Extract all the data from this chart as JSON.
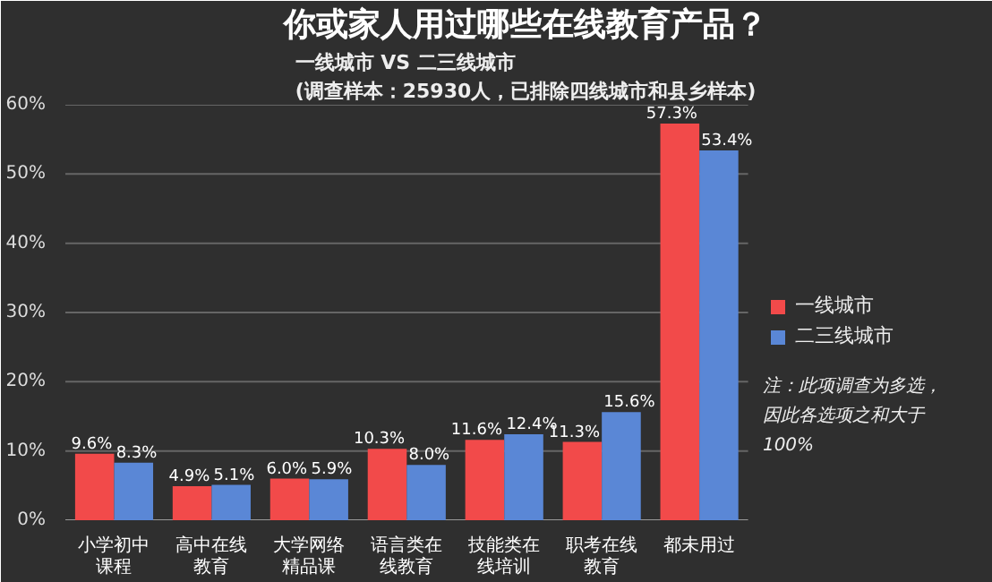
{
  "chart_data": {
    "type": "bar",
    "title": "你或家人用过哪些在线教育产品？",
    "subtitle": "一线城市 VS 二三线城市\n(调查样本：25930人，已排除四线城市和县乡样本)",
    "categories": [
      "小学初中课程",
      "高中在线教育",
      "大学网络精品课",
      "语言类在线教育",
      "技能类在线培训",
      "职考在线教育",
      "都未用过"
    ],
    "series": [
      {
        "name": "一线城市",
        "color": "#f24a4a",
        "values": [
          9.6,
          4.9,
          6.0,
          10.3,
          11.6,
          11.3,
          57.3
        ],
        "value_labels": [
          "9.6%",
          "4.9%",
          "6.0%",
          "10.3%",
          "11.6%",
          "11.3%",
          "57.3%"
        ]
      },
      {
        "name": "二三线城市",
        "color": "#5a87d6",
        "values": [
          8.3,
          5.1,
          5.9,
          8.0,
          12.4,
          15.6,
          53.4
        ],
        "value_labels": [
          "8.3%",
          "5.1%",
          "5.9%",
          "8.0%",
          "12.4%",
          "15.6%",
          "53.4%"
        ]
      }
    ],
    "ylim": [
      0,
      60
    ],
    "yticks": [
      {
        "value": 0,
        "label": "0%"
      },
      {
        "value": 10,
        "label": "10%"
      },
      {
        "value": 20,
        "label": "20%"
      },
      {
        "value": 30,
        "label": "30%"
      },
      {
        "value": 40,
        "label": "40%"
      },
      {
        "value": 50,
        "label": "50%"
      },
      {
        "value": 60,
        "label": "60%"
      }
    ],
    "grid": "y",
    "legend": "right",
    "annotations": [
      "注：此项调查为多选，因此各选项之和大于100%"
    ]
  }
}
